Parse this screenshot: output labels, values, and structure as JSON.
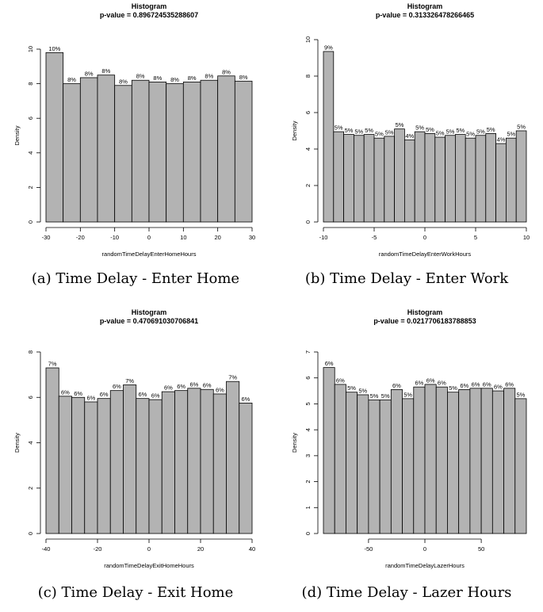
{
  "chart_data": [
    {
      "type": "bar",
      "title": "Histogram",
      "subtitle": "p-value = 0.896724535288607",
      "xlabel": "randomTimeDelayEnterHomeHours",
      "ylabel": "Density",
      "caption": "(a) Time Delay - Enter Home",
      "xlim": [
        -30,
        30
      ],
      "ylim": [
        0,
        10
      ],
      "xticks": [
        -30,
        -20,
        -10,
        0,
        10,
        20,
        30
      ],
      "yticks": [
        0,
        2,
        4,
        6,
        8,
        10
      ],
      "bin_edges": [
        -30,
        -25,
        -20,
        -15,
        -10,
        -5,
        0,
        5,
        10,
        15,
        20,
        25,
        30
      ],
      "values": [
        9.8,
        8.0,
        8.35,
        8.5,
        7.9,
        8.2,
        8.1,
        8.0,
        8.1,
        8.2,
        8.45,
        8.15
      ],
      "labels": [
        "10%",
        "8%",
        "8%",
        "8%",
        "8%",
        "8%",
        "8%",
        "8%",
        "8%",
        "8%",
        "8%",
        "8%"
      ]
    },
    {
      "type": "bar",
      "title": "Histogram",
      "subtitle": "p-value = 0.313326478266465",
      "xlabel": "randomTimeDelayEnterWorkHours",
      "ylabel": "Density",
      "caption": "(b) Time Delay - Enter Work",
      "xlim": [
        -10,
        10
      ],
      "ylim": [
        0,
        10
      ],
      "xticks": [
        -10,
        -5,
        0,
        5,
        10
      ],
      "yticks": [
        0,
        2,
        4,
        6,
        8,
        10
      ],
      "bin_edges": [
        -10,
        -9,
        -8,
        -7,
        -6,
        -5,
        -4,
        -3,
        -2,
        -1,
        0,
        1,
        2,
        3,
        4,
        5,
        6,
        7,
        8,
        9,
        10
      ],
      "values": [
        9.35,
        4.95,
        4.8,
        4.75,
        4.8,
        4.6,
        4.7,
        5.1,
        4.5,
        4.95,
        4.85,
        4.65,
        4.75,
        4.8,
        4.6,
        4.75,
        4.85,
        4.3,
        4.6,
        5.0
      ],
      "labels": [
        "9%",
        "5%",
        "5%",
        "5%",
        "5%",
        "5%",
        "5%",
        "5%",
        "4%",
        "5%",
        "5%",
        "5%",
        "5%",
        "5%",
        "5%",
        "5%",
        "5%",
        "4%",
        "5%",
        "5%"
      ]
    },
    {
      "type": "bar",
      "title": "Histogram",
      "subtitle": "p-value = 0.470691030706841",
      "xlabel": "randomTimeDelayExitHomeHours",
      "ylabel": "Density",
      "caption": "(c) Time Delay - Exit Home",
      "xlim": [
        -40,
        40
      ],
      "ylim": [
        0,
        8
      ],
      "xticks": [
        -40,
        -20,
        0,
        20,
        40
      ],
      "yticks": [
        0,
        2,
        4,
        6,
        8
      ],
      "bin_edges": [
        -40,
        -35,
        -30,
        -25,
        -20,
        -15,
        -10,
        -5,
        0,
        5,
        10,
        15,
        20,
        25,
        30,
        35,
        40
      ],
      "values": [
        7.3,
        6.05,
        6.0,
        5.8,
        5.95,
        6.3,
        6.55,
        5.95,
        5.9,
        6.25,
        6.3,
        6.4,
        6.35,
        6.15,
        6.7,
        5.75
      ],
      "labels": [
        "7%",
        "6%",
        "6%",
        "6%",
        "6%",
        "6%",
        "7%",
        "6%",
        "6%",
        "6%",
        "6%",
        "6%",
        "6%",
        "6%",
        "7%",
        "6%"
      ]
    },
    {
      "type": "bar",
      "title": "Histogram",
      "subtitle": "p-value = 0.0217706183788853",
      "xlabel": "randomTimeDelayLazerHours",
      "ylabel": "Density",
      "caption": "(d) Time Delay - Lazer Hours",
      "xlim": [
        -90,
        90
      ],
      "ylim": [
        0,
        7
      ],
      "xticks": [
        -50,
        0,
        50
      ],
      "yticks": [
        0,
        1,
        2,
        3,
        4,
        5,
        6,
        7
      ],
      "bin_edges": [
        -90,
        -80,
        -70,
        -60,
        -50,
        -40,
        -30,
        -20,
        -10,
        0,
        10,
        20,
        30,
        40,
        50,
        60,
        70,
        80,
        90
      ],
      "values": [
        6.4,
        5.75,
        5.45,
        5.35,
        5.15,
        5.15,
        5.55,
        5.2,
        5.65,
        5.75,
        5.65,
        5.45,
        5.55,
        5.6,
        5.6,
        5.5,
        5.6,
        5.2
      ],
      "labels": [
        "6%",
        "6%",
        "5%",
        "5%",
        "5%",
        "5%",
        "6%",
        "5%",
        "6%",
        "6%",
        "6%",
        "5%",
        "6%",
        "6%",
        "6%",
        "6%",
        "6%",
        "5%"
      ]
    }
  ]
}
